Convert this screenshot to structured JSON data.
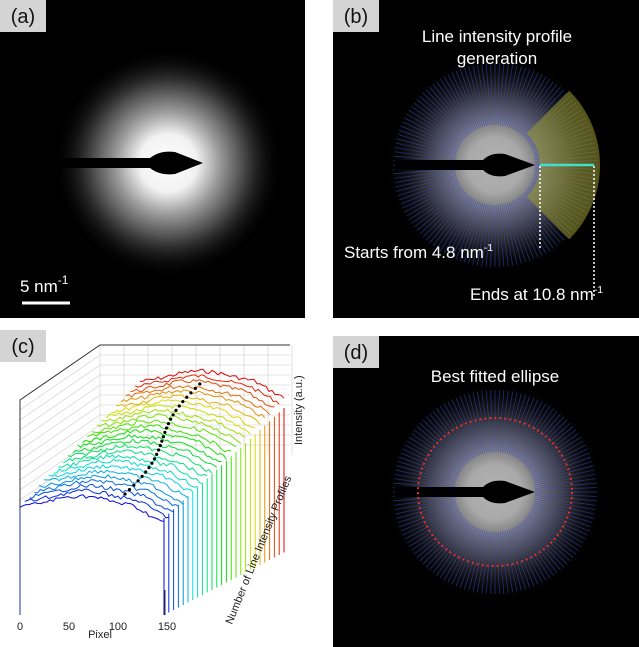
{
  "panels": [
    {
      "label": "(a)",
      "scale_bar": {
        "text": "5 nm",
        "superscript": "-1"
      }
    },
    {
      "label": "(b)",
      "title_lines": [
        "Line intensity profile",
        "generation"
      ],
      "start_note": {
        "text": "Starts from 4.8 nm",
        "superscript": "-1"
      },
      "end_note": {
        "text": "Ends at 10.8 nm",
        "superscript": "-1"
      }
    },
    {
      "label": "(c)",
      "x_label": "Pixel",
      "x_ticks": [
        0,
        50,
        100,
        150
      ],
      "y_label": "Number of Line Intensity Profiles",
      "z_label": "Intensity (a.u.)"
    },
    {
      "label": "(d)",
      "title": "Best fitted ellipse"
    }
  ]
}
